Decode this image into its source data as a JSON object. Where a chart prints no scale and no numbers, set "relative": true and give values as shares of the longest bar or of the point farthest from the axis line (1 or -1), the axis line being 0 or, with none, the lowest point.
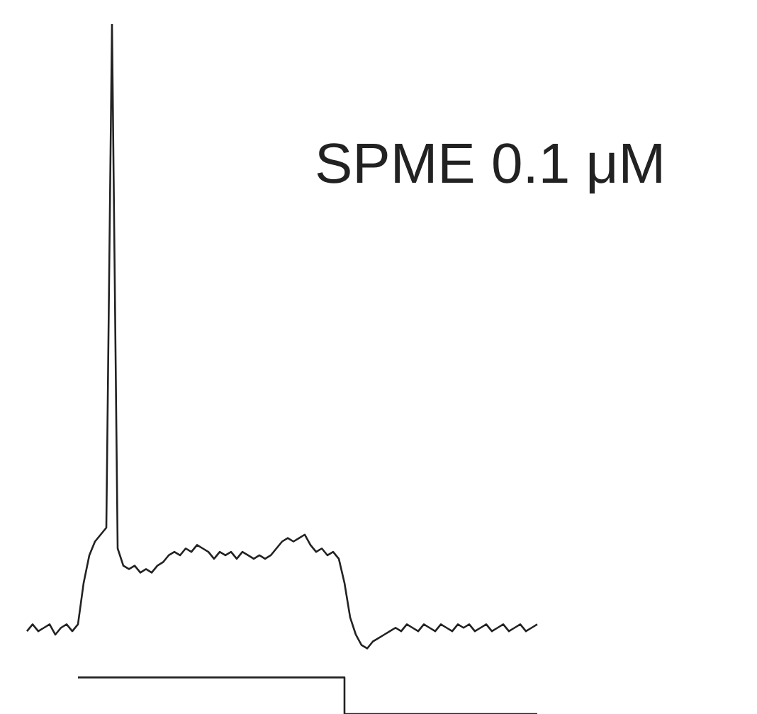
{
  "chart_data": {
    "type": "line",
    "title": "SPME 0.1 μM",
    "relative": true,
    "marker": "none",
    "categories": [
      null,
      null,
      null,
      null,
      null,
      null,
      null,
      null,
      null,
      null,
      null,
      null,
      null,
      null,
      null,
      null,
      null,
      null,
      null,
      null,
      null,
      null,
      null,
      null,
      null,
      null,
      null,
      null,
      null,
      null,
      null,
      null,
      null,
      null,
      null,
      null,
      null,
      null,
      null,
      null,
      null,
      null,
      null,
      null,
      null,
      null,
      null,
      null,
      null,
      null,
      null,
      null,
      null,
      null,
      null,
      null,
      null,
      null,
      null,
      null,
      null,
      null,
      null,
      null,
      null,
      null,
      null,
      null,
      null,
      null,
      null,
      null,
      null,
      null,
      null,
      null,
      null,
      null,
      null,
      null,
      null,
      null,
      null,
      null,
      null,
      null,
      null,
      null,
      null,
      null,
      null
    ],
    "series": [
      {
        "color": "#222222",
        "values": [
          0.12,
          0.13,
          0.12,
          0.125,
          0.13,
          0.115,
          0.125,
          0.13,
          0.12,
          0.13,
          0.19,
          0.23,
          0.25,
          0.26,
          0.27,
          1,
          0.24,
          0.215,
          0.21,
          0.215,
          0.205,
          0.21,
          0.205,
          0.215,
          0.22,
          0.23,
          0.235,
          0.23,
          0.24,
          0.235,
          0.245,
          0.24,
          0.235,
          0.225,
          0.235,
          0.23,
          0.235,
          0.225,
          0.235,
          0.23,
          0.225,
          0.23,
          0.225,
          0.23,
          0.24,
          0.25,
          0.255,
          0.25,
          0.255,
          0.26,
          0.245,
          0.235,
          0.24,
          0.23,
          0.235,
          0.225,
          0.19,
          0.14,
          0.115,
          0.1,
          0.095,
          0.105,
          0.11,
          0.115,
          0.12,
          0.125,
          0.12,
          0.13,
          0.125,
          0.12,
          0.13,
          0.125,
          0.12,
          0.13,
          0.125,
          0.12,
          0.13,
          0.125,
          0.13,
          0.12,
          0.125,
          0.13,
          0.12,
          0.125,
          0.13,
          0.12,
          0.125,
          0.13,
          0.12,
          0.125,
          0.13
        ]
      },
      {
        "type": "step",
        "color": "#222222",
        "values": [
          null,
          null,
          null,
          null,
          null,
          null,
          null,
          null,
          null,
          0.053,
          0.053,
          0.053,
          0.053,
          0.053,
          0.053,
          0.053,
          0.053,
          0.053,
          0.053,
          0.053,
          0.053,
          0.053,
          0.053,
          0.053,
          0.053,
          0.053,
          0.053,
          0.053,
          0.053,
          0.053,
          0.053,
          0.053,
          0.053,
          0.053,
          0.053,
          0.053,
          0.053,
          0.053,
          0.053,
          0.053,
          0.053,
          0.053,
          0.053,
          0.053,
          0.053,
          0.053,
          0.053,
          0.053,
          0.053,
          0.053,
          0.053,
          0.053,
          0.053,
          0.053,
          0.053,
          0.053,
          0,
          0,
          0,
          0,
          0,
          0,
          0,
          0,
          0,
          0,
          0,
          0,
          0,
          0,
          0,
          0,
          0,
          0,
          0,
          0,
          0,
          0,
          0,
          0,
          0,
          0,
          0,
          0,
          0,
          0,
          0,
          0,
          0,
          0,
          0
        ]
      }
    ]
  }
}
